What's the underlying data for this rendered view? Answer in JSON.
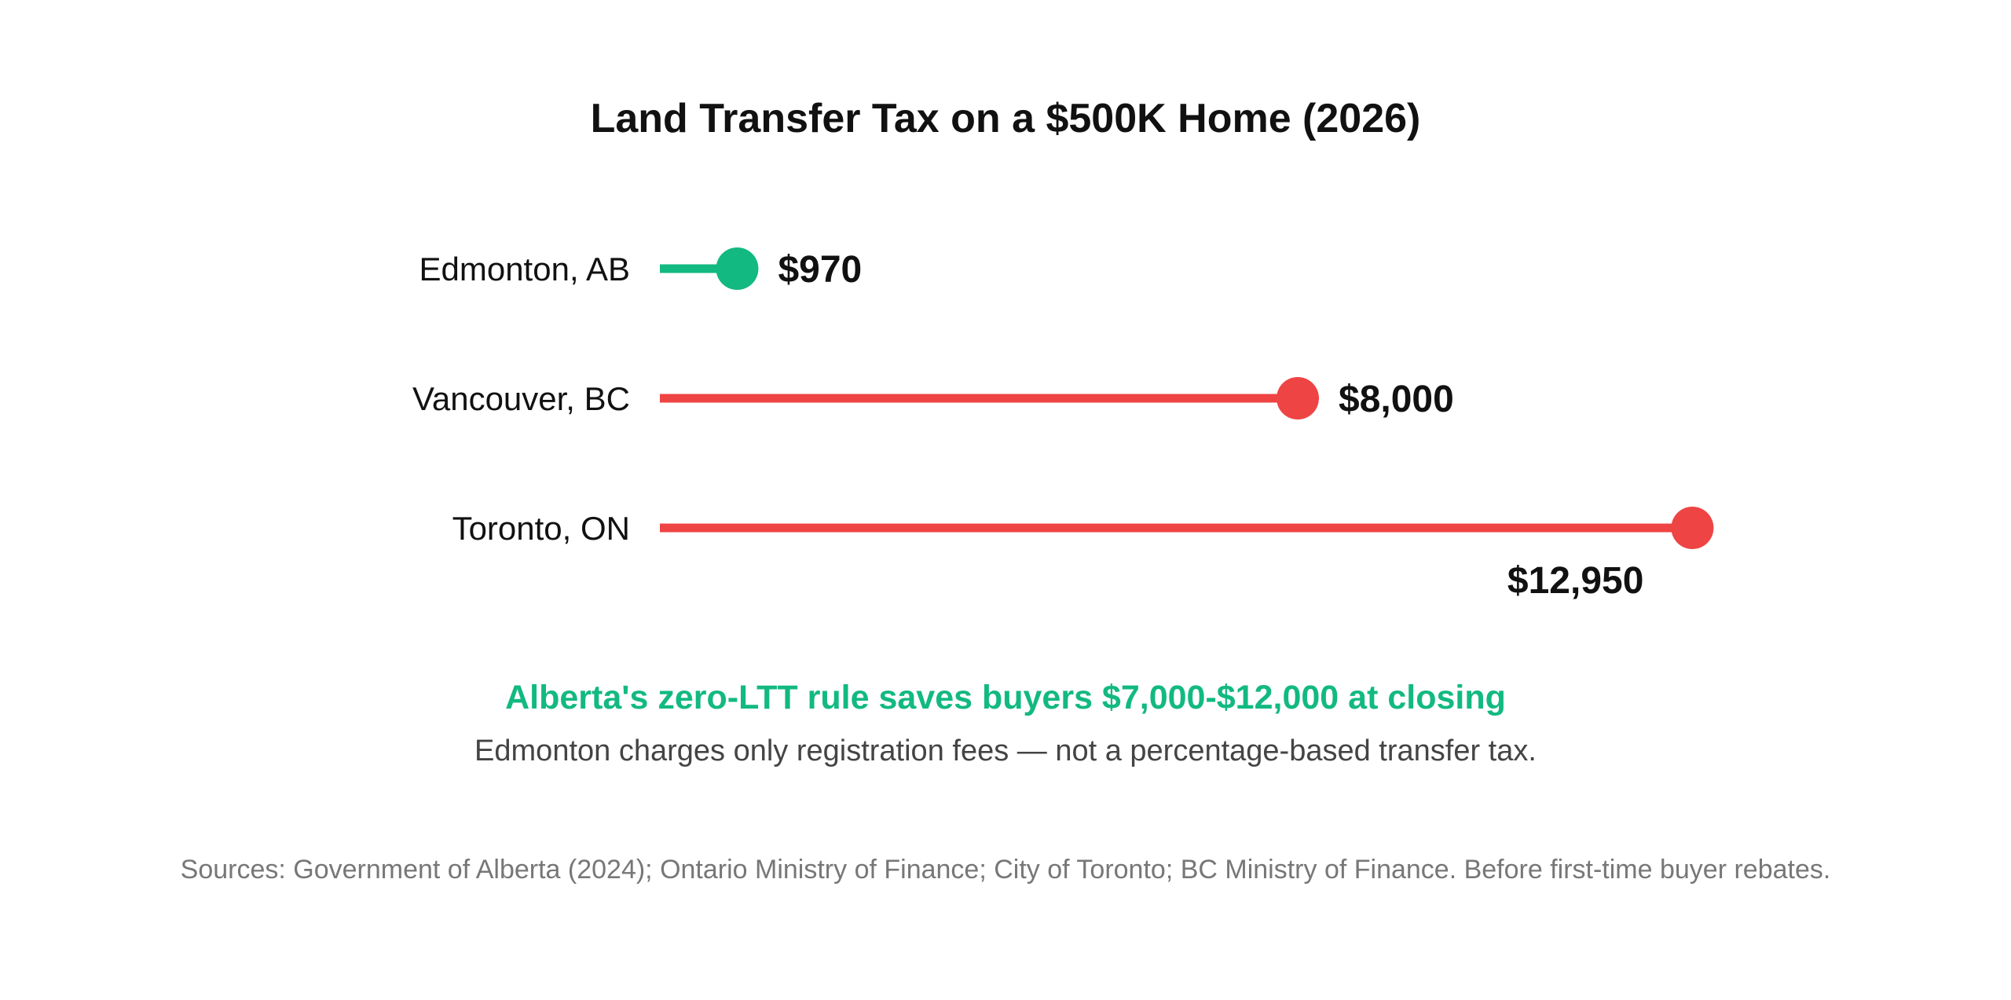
{
  "chart_data": {
    "type": "lollipop",
    "title": "Land Transfer Tax on a $500K Home (2026)",
    "categories": [
      "Edmonton, AB",
      "Vancouver, BC",
      "Toronto, ON"
    ],
    "values": [
      970,
      8000,
      12950
    ],
    "value_labels": [
      "$970",
      "$8,000",
      "$12,950"
    ],
    "colors": [
      "#12b981",
      "#ef4444",
      "#ef4444"
    ],
    "xlim": [
      0,
      13000
    ],
    "grid": false
  },
  "callout": {
    "headline": "Alberta's zero-LTT rule saves buyers $7,000-$12,000 at closing",
    "headline_color": "#12b981",
    "subline": "Edmonton charges only registration fees — not a percentage-based transfer tax."
  },
  "source_note": "Sources: Government of Alberta (2024); Ontario Ministry of Finance; City of Toronto; BC Ministry of Finance. Before first-time buyer rebates."
}
